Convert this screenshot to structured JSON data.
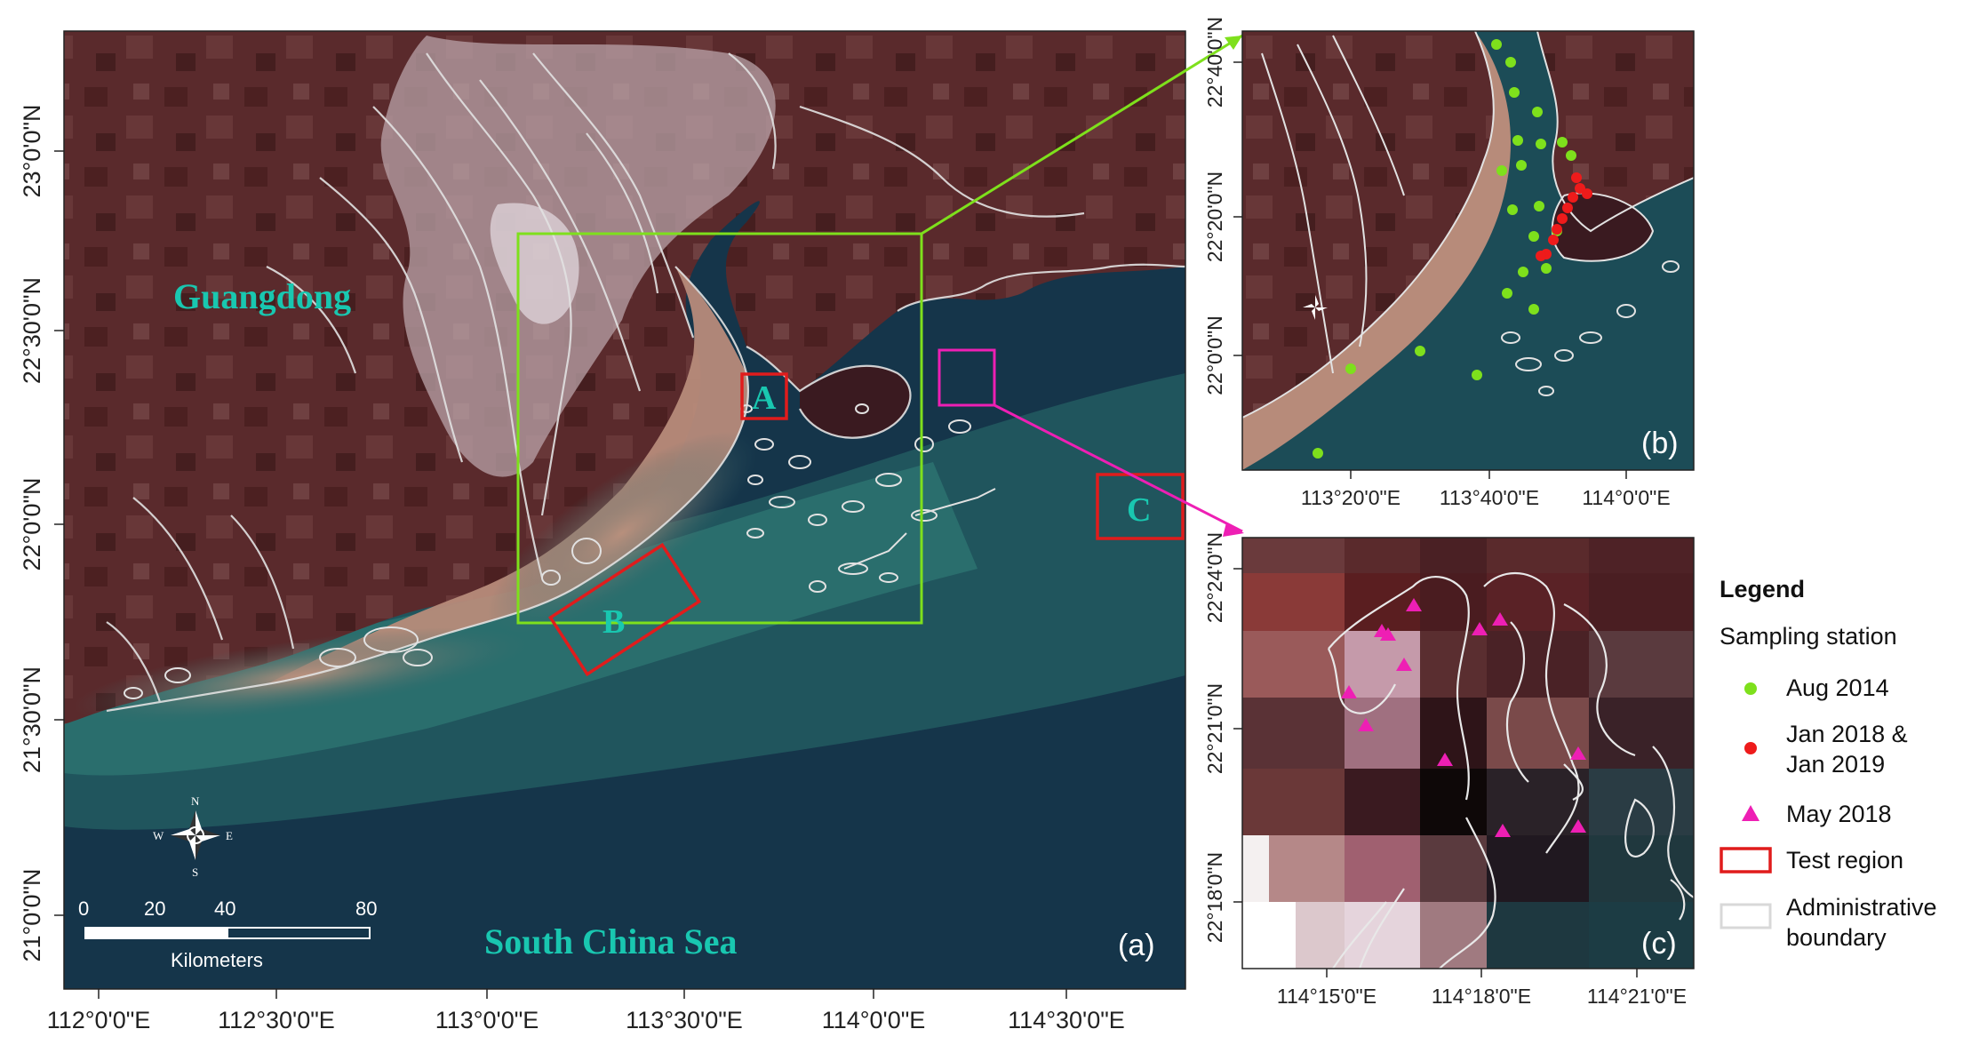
{
  "panels": {
    "a": {
      "letter": "(a)",
      "place_labels": {
        "guangdong": "Guangdong",
        "sea": "South China Sea"
      },
      "region_labels": [
        "A",
        "B",
        "C"
      ],
      "x_ticks": [
        "112°0'0\"E",
        "112°30'0\"E",
        "113°0'0\"E",
        "113°30'0\"E",
        "114°0'0\"E",
        "114°30'0\"E"
      ],
      "y_ticks": [
        "23°0'0\"N",
        "22°30'0\"N",
        "22°0'0\"N",
        "21°30'0\"N",
        "21°0'0\"N"
      ],
      "scale_bar": {
        "ticks": [
          "0",
          "20",
          "40",
          "80"
        ],
        "unit": "Kilometers"
      },
      "compass": {
        "n": "N",
        "s": "S",
        "e": "E",
        "w": "W"
      }
    },
    "b": {
      "letter": "(b)",
      "x_ticks": [
        "113°20'0\"E",
        "113°40'0\"E",
        "114°0'0\"E"
      ],
      "y_ticks": [
        "22°40'0\"N",
        "22°20'0\"N",
        "22°0'0\"N"
      ]
    },
    "c": {
      "letter": "(c)",
      "x_ticks": [
        "114°15'0\"E",
        "114°18'0\"E",
        "114°21'0\"E"
      ],
      "y_ticks": [
        "22°24'0\"N",
        "22°21'0\"N",
        "22°18'0\"N"
      ]
    }
  },
  "legend": {
    "title": "Legend",
    "subtitle": "Sampling station",
    "items": [
      {
        "lines": [
          "Aug 2014"
        ],
        "symbol": "circle",
        "color": "#7ee01c"
      },
      {
        "lines": [
          "Jan 2018 &",
          "Jan 2019"
        ],
        "symbol": "circle",
        "color": "#ee1b1b"
      },
      {
        "lines": [
          "May 2018"
        ],
        "symbol": "triangle",
        "color": "#ee1fb4"
      },
      {
        "lines": [
          "Test region"
        ],
        "symbol": "rect",
        "color": "#e01c1c"
      },
      {
        "lines": [
          "Administrative",
          "boundary"
        ],
        "symbol": "rect",
        "color": "#d8d8d8"
      }
    ]
  },
  "colors": {
    "land": "#5c2a2a",
    "water": "#163a4c",
    "turbid": "#b58a7a",
    "urban": "#cbb9be",
    "boundary": "#dedede",
    "inset_frame": "#7ee01c",
    "zoom_frame": "#ee1fb4",
    "test_region": "#e01c1c",
    "label": "#19c7b0"
  }
}
